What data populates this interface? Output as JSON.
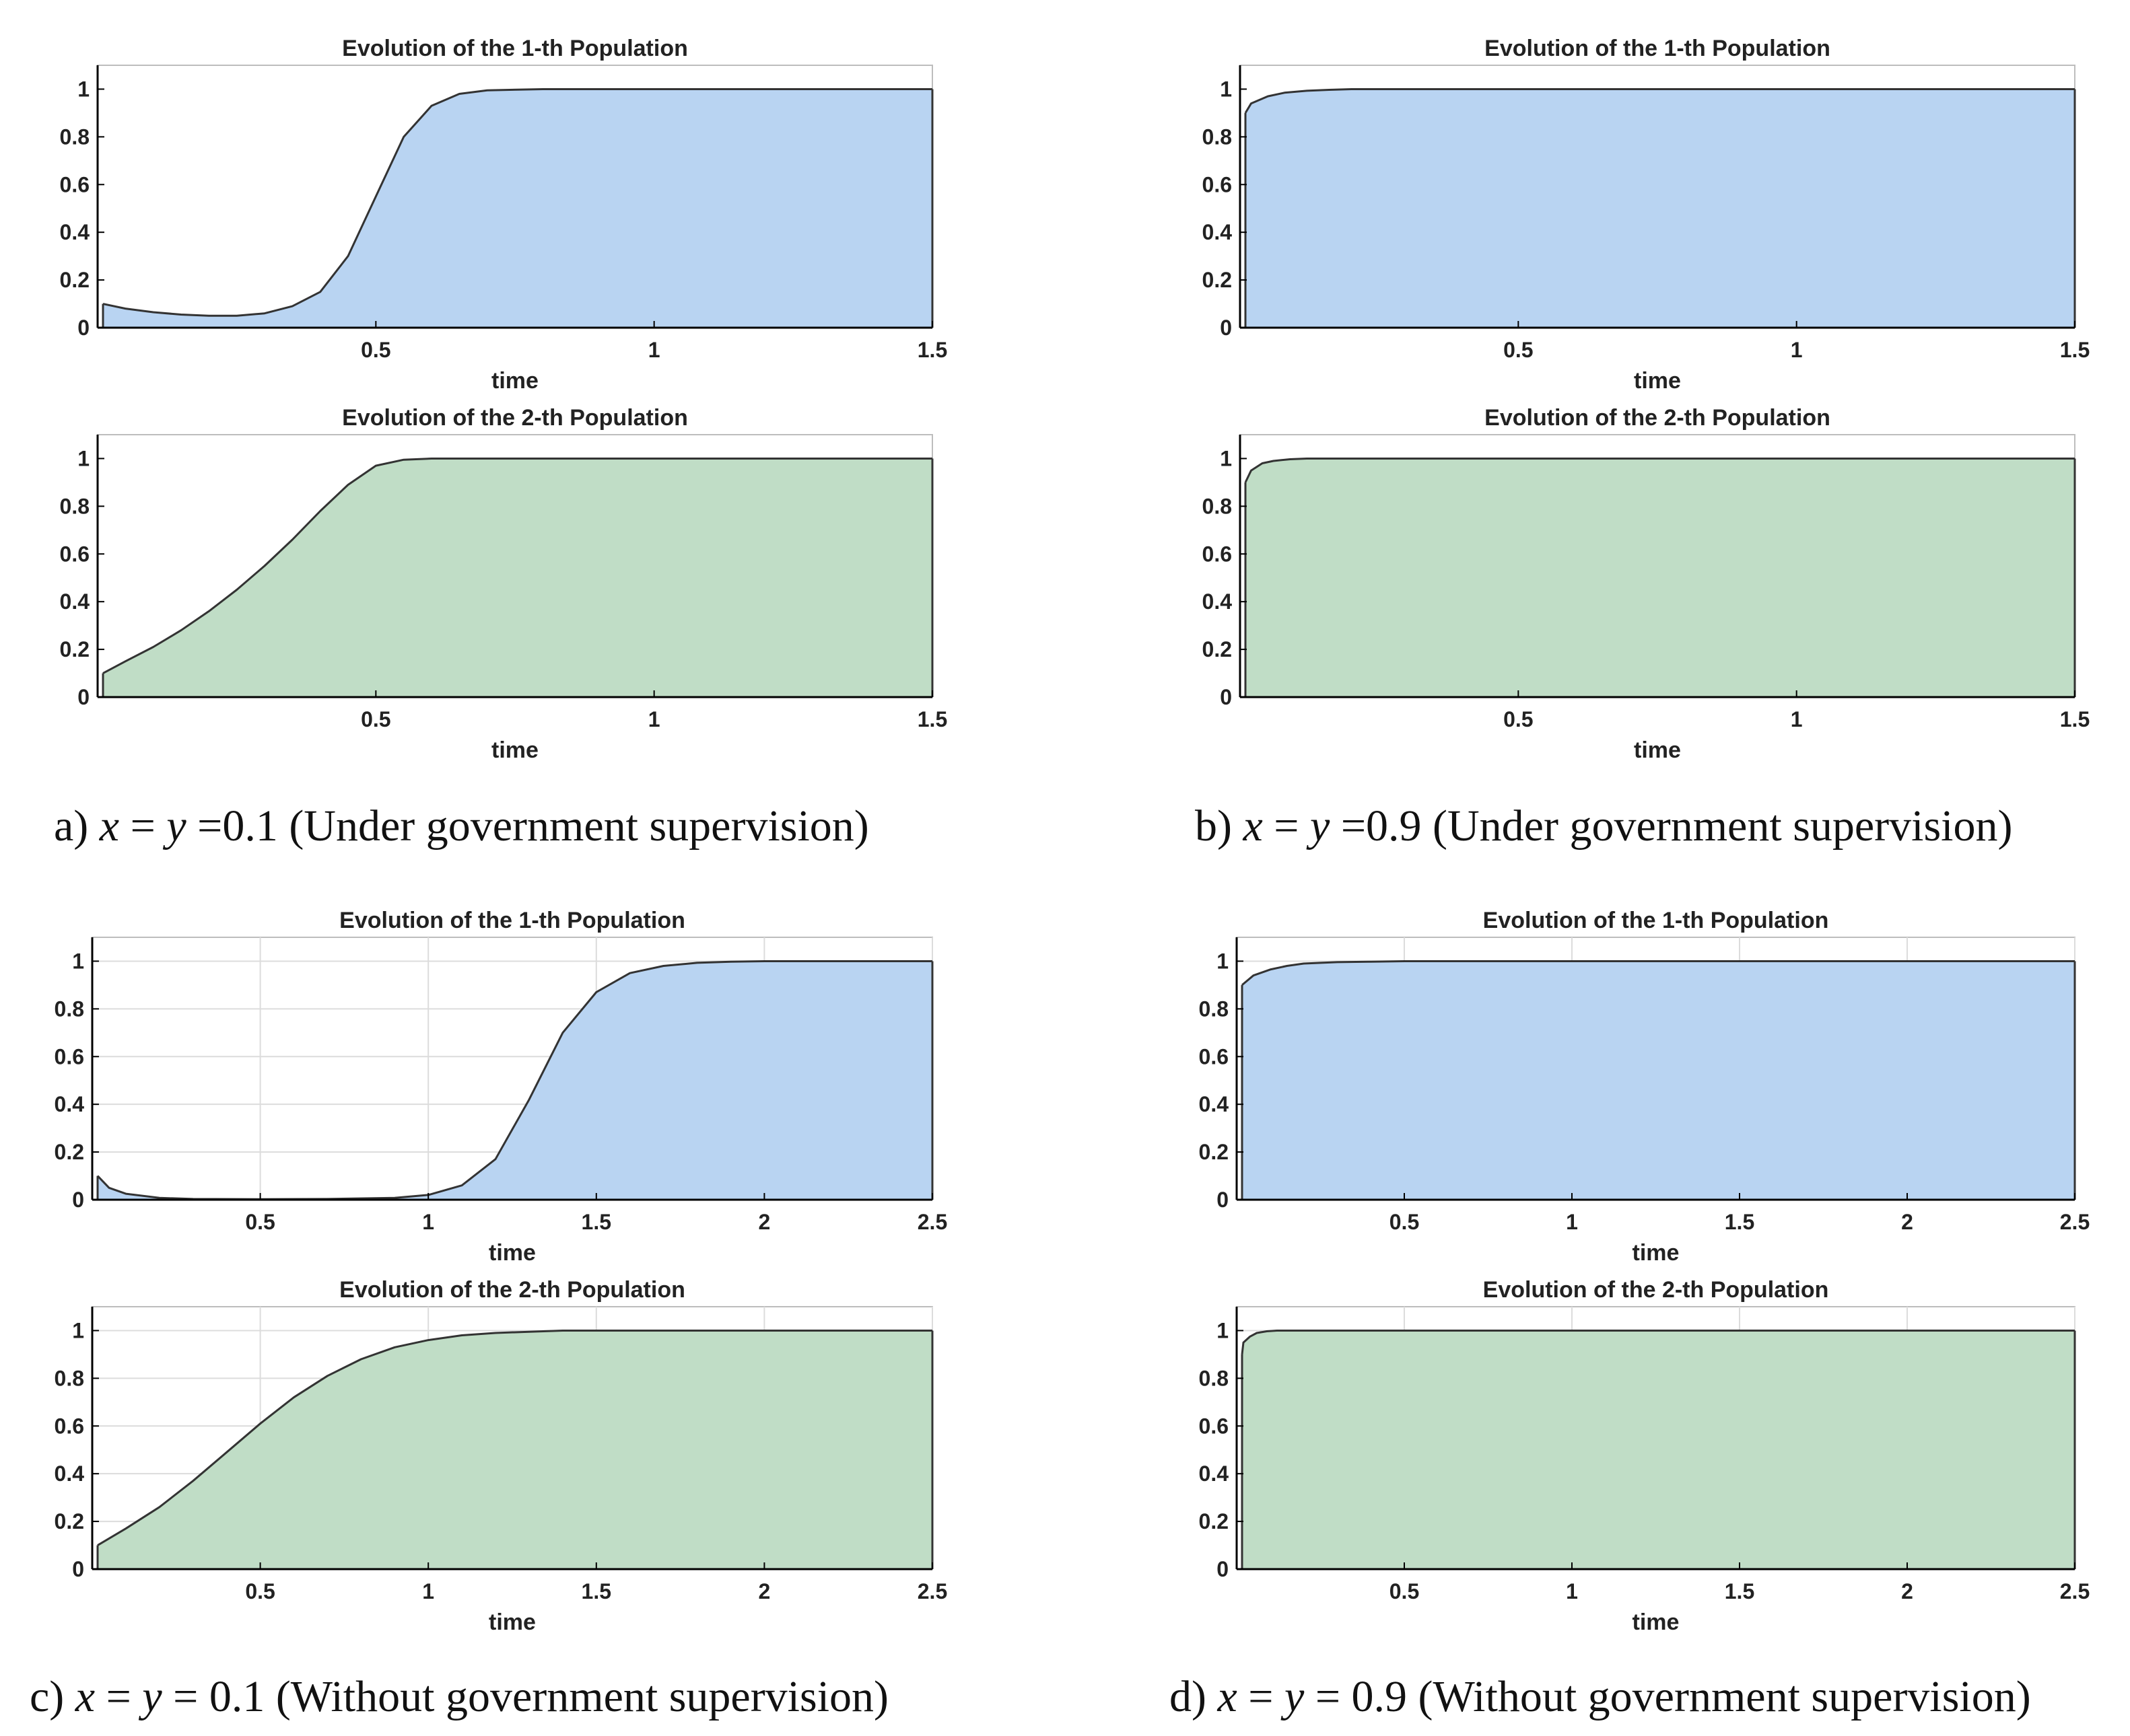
{
  "colors": {
    "pop1_fill": "#b9d4f2",
    "pop2_fill": "#c0ddc6",
    "line": "#333333",
    "grid": "#dcdcdc",
    "axis": "#000000",
    "frame": "#bdbdbd"
  },
  "captions": [
    {
      "id": "a",
      "prefix": "a) ",
      "var1": "x",
      "eq1": " = ",
      "var2": "y",
      "rest": " =0.1 (Under government supervision)"
    },
    {
      "id": "b",
      "prefix": "b) ",
      "var1": "x",
      "eq1": " = ",
      "var2": "y",
      "rest": " =0.9 (Under government supervision)"
    },
    {
      "id": "c",
      "prefix": "c) ",
      "var1": "x",
      "eq1": " = ",
      "var2": "y",
      "rest": " = 0.1 (Without government supervision)"
    },
    {
      "id": "d",
      "prefix": "d) ",
      "var1": "x",
      "eq1": " = ",
      "var2": "y",
      "rest": " = 0.9 (Without government supervision)"
    }
  ],
  "chart_data": [
    {
      "type": "area",
      "panel": "a",
      "population": 1,
      "title": "Evolution of the 1-th Population",
      "xlabel": "time",
      "ylabel": "",
      "xlim": [
        0,
        1.5
      ],
      "ylim": [
        0,
        1.1
      ],
      "grid": false,
      "xticks": [
        0.5,
        1,
        1.5
      ],
      "xtick_labels": [
        "0.5",
        "1",
        "1.5"
      ],
      "yticks": [
        0,
        0.2,
        0.4,
        0.6,
        0.8,
        1
      ],
      "ytick_labels": [
        "0",
        "0.2",
        "0.4",
        "0.6",
        "0.8",
        "1"
      ],
      "x": [
        0,
        0.05,
        0.1,
        0.15,
        0.2,
        0.25,
        0.3,
        0.35,
        0.4,
        0.45,
        0.5,
        0.55,
        0.6,
        0.65,
        0.7,
        0.8,
        0.9,
        1.0,
        1.2,
        1.5
      ],
      "y": [
        0.1,
        0.08,
        0.065,
        0.055,
        0.05,
        0.05,
        0.06,
        0.09,
        0.15,
        0.3,
        0.55,
        0.8,
        0.93,
        0.98,
        0.995,
        1.0,
        1.0,
        1.0,
        1.0,
        1.0
      ]
    },
    {
      "type": "area",
      "panel": "a",
      "population": 2,
      "title": "Evolution of the 2-th Population",
      "xlabel": "time",
      "ylabel": "",
      "xlim": [
        0,
        1.5
      ],
      "ylim": [
        0,
        1.1
      ],
      "grid": false,
      "xticks": [
        0.5,
        1,
        1.5
      ],
      "xtick_labels": [
        "0.5",
        "1",
        "1.5"
      ],
      "yticks": [
        0,
        0.2,
        0.4,
        0.6,
        0.8,
        1
      ],
      "ytick_labels": [
        "0",
        "0.2",
        "0.4",
        "0.6",
        "0.8",
        "1"
      ],
      "x": [
        0,
        0.05,
        0.1,
        0.15,
        0.2,
        0.25,
        0.3,
        0.35,
        0.4,
        0.45,
        0.5,
        0.55,
        0.6,
        0.7,
        1.0,
        1.5
      ],
      "y": [
        0.1,
        0.15,
        0.21,
        0.28,
        0.36,
        0.45,
        0.55,
        0.66,
        0.78,
        0.89,
        0.97,
        0.995,
        1.0,
        1.0,
        1.0,
        1.0
      ]
    },
    {
      "type": "area",
      "panel": "b",
      "population": 1,
      "title": "Evolution of the 1-th Population",
      "xlabel": "time",
      "ylabel": "",
      "xlim": [
        0,
        1.5
      ],
      "ylim": [
        0,
        1.1
      ],
      "grid": false,
      "xticks": [
        0.5,
        1,
        1.5
      ],
      "xtick_labels": [
        "0.5",
        "1",
        "1.5"
      ],
      "yticks": [
        0,
        0.2,
        0.4,
        0.6,
        0.8,
        1
      ],
      "ytick_labels": [
        "0",
        "0.2",
        "0.4",
        "0.6",
        "0.8",
        "1"
      ],
      "x": [
        0,
        0.02,
        0.05,
        0.08,
        0.12,
        0.16,
        0.2,
        0.3,
        0.5,
        1.0,
        1.5
      ],
      "y": [
        0.9,
        0.94,
        0.97,
        0.985,
        0.993,
        0.997,
        1.0,
        1.0,
        1.0,
        1.0,
        1.0
      ]
    },
    {
      "type": "area",
      "panel": "b",
      "population": 2,
      "title": "Evolution of the 2-th Population",
      "xlabel": "time",
      "ylabel": "",
      "xlim": [
        0,
        1.5
      ],
      "ylim": [
        0,
        1.1
      ],
      "grid": false,
      "xticks": [
        0.5,
        1,
        1.5
      ],
      "xtick_labels": [
        "0.5",
        "1",
        "1.5"
      ],
      "yticks": [
        0,
        0.2,
        0.4,
        0.6,
        0.8,
        1
      ],
      "ytick_labels": [
        "0",
        "0.2",
        "0.4",
        "0.6",
        "0.8",
        "1"
      ],
      "x": [
        0,
        0.02,
        0.04,
        0.06,
        0.09,
        0.12,
        0.2,
        0.5,
        1.0,
        1.5
      ],
      "y": [
        0.9,
        0.95,
        0.98,
        0.99,
        0.997,
        1.0,
        1.0,
        1.0,
        1.0,
        1.0
      ]
    },
    {
      "type": "area",
      "panel": "c",
      "population": 1,
      "title": "Evolution of the 1-th Population",
      "xlabel": "time",
      "ylabel": "",
      "xlim": [
        0,
        2.5
      ],
      "ylim": [
        0,
        1.1
      ],
      "grid": true,
      "xticks": [
        0.5,
        1,
        1.5,
        2,
        2.5
      ],
      "xtick_labels": [
        "0.5",
        "1",
        "1.5",
        "2",
        "2.5"
      ],
      "yticks": [
        0,
        0.2,
        0.4,
        0.6,
        0.8,
        1
      ],
      "ytick_labels": [
        "0",
        "0.2",
        "0.4",
        "0.6",
        "0.8",
        "1"
      ],
      "x": [
        0,
        0.05,
        0.1,
        0.2,
        0.3,
        0.5,
        0.7,
        0.9,
        1.0,
        1.1,
        1.2,
        1.3,
        1.4,
        1.5,
        1.6,
        1.7,
        1.8,
        1.9,
        2.0,
        2.2,
        2.5
      ],
      "y": [
        0.1,
        0.05,
        0.025,
        0.008,
        0.003,
        0.002,
        0.003,
        0.008,
        0.02,
        0.06,
        0.17,
        0.42,
        0.7,
        0.87,
        0.95,
        0.98,
        0.993,
        0.998,
        1.0,
        1.0,
        1.0
      ]
    },
    {
      "type": "area",
      "panel": "c",
      "population": 2,
      "title": "Evolution of the 2-th Population",
      "xlabel": "time",
      "ylabel": "",
      "xlim": [
        0,
        2.5
      ],
      "ylim": [
        0,
        1.1
      ],
      "grid": true,
      "xticks": [
        0.5,
        1,
        1.5,
        2,
        2.5
      ],
      "xtick_labels": [
        "0.5",
        "1",
        "1.5",
        "2",
        "2.5"
      ],
      "yticks": [
        0,
        0.2,
        0.4,
        0.6,
        0.8,
        1
      ],
      "ytick_labels": [
        "0",
        "0.2",
        "0.4",
        "0.6",
        "0.8",
        "1"
      ],
      "x": [
        0,
        0.1,
        0.2,
        0.3,
        0.4,
        0.5,
        0.6,
        0.7,
        0.8,
        0.9,
        1.0,
        1.1,
        1.2,
        1.3,
        1.4,
        1.5,
        2.0,
        2.5
      ],
      "y": [
        0.1,
        0.17,
        0.26,
        0.37,
        0.49,
        0.61,
        0.72,
        0.81,
        0.88,
        0.93,
        0.96,
        0.98,
        0.99,
        0.995,
        1.0,
        1.0,
        1.0,
        1.0
      ]
    },
    {
      "type": "area",
      "panel": "d",
      "population": 1,
      "title": "Evolution of the 1-th Population",
      "xlabel": "time",
      "ylabel": "",
      "xlim": [
        0,
        2.5
      ],
      "ylim": [
        0,
        1.1
      ],
      "grid": true,
      "xticks": [
        0.5,
        1,
        1.5,
        2,
        2.5
      ],
      "xtick_labels": [
        "0.5",
        "1",
        "1.5",
        "2",
        "2.5"
      ],
      "yticks": [
        0,
        0.2,
        0.4,
        0.6,
        0.8,
        1
      ],
      "ytick_labels": [
        "0",
        "0.2",
        "0.4",
        "0.6",
        "0.8",
        "1"
      ],
      "x": [
        0,
        0.05,
        0.1,
        0.15,
        0.2,
        0.3,
        0.4,
        0.5,
        0.7,
        1.0,
        1.5,
        2.0,
        2.5
      ],
      "y": [
        0.9,
        0.94,
        0.965,
        0.98,
        0.99,
        0.996,
        0.998,
        1.0,
        1.0,
        1.0,
        1.0,
        1.0,
        1.0
      ]
    },
    {
      "type": "area",
      "panel": "d",
      "population": 2,
      "title": "Evolution of the 2-th Population",
      "xlabel": "time",
      "ylabel": "",
      "xlim": [
        0,
        2.5
      ],
      "ylim": [
        0,
        1.1
      ],
      "grid": true,
      "xticks": [
        0.5,
        1,
        1.5,
        2,
        2.5
      ],
      "xtick_labels": [
        "0.5",
        "1",
        "1.5",
        "2",
        "2.5"
      ],
      "yticks": [
        0,
        0.2,
        0.4,
        0.6,
        0.8,
        1
      ],
      "ytick_labels": [
        "0",
        "0.2",
        "0.4",
        "0.6",
        "0.8",
        "1"
      ],
      "x": [
        0,
        0.02,
        0.04,
        0.06,
        0.09,
        0.12,
        0.2,
        0.5,
        1.0,
        1.5,
        2.0,
        2.5
      ],
      "y": [
        0.9,
        0.95,
        0.975,
        0.99,
        0.997,
        1.0,
        1.0,
        1.0,
        1.0,
        1.0,
        1.0,
        1.0
      ]
    }
  ]
}
